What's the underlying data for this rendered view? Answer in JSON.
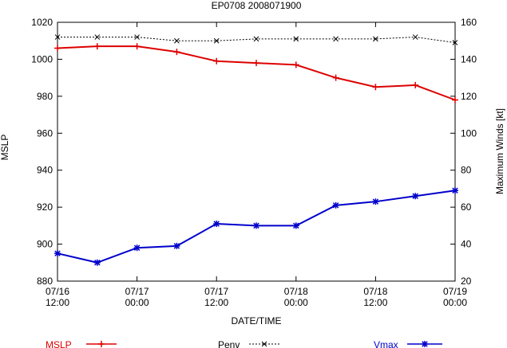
{
  "chart_data": {
    "type": "line",
    "title": "EP0708 2008071900",
    "xlabel": "DATE/TIME",
    "ylabel_left": "MSLP",
    "ylabel_right": "Maximum Winds [kt]",
    "x_ticks": [
      {
        "line1": "07/16",
        "line2": "12:00"
      },
      {
        "line1": "07/17",
        "line2": "00:00"
      },
      {
        "line1": "07/17",
        "line2": "12:00"
      },
      {
        "line1": "07/18",
        "line2": "00:00"
      },
      {
        "line1": "07/18",
        "line2": "12:00"
      },
      {
        "line1": "07/19",
        "line2": "00:00"
      }
    ],
    "x_hours": [
      0,
      6,
      12,
      18,
      24,
      30,
      36,
      42,
      48,
      54,
      60
    ],
    "ylim_left": [
      880,
      1020
    ],
    "yticks_left": [
      880,
      900,
      920,
      940,
      960,
      980,
      1000,
      1020
    ],
    "ylim_right": [
      20,
      160
    ],
    "yticks_right": [
      20,
      40,
      60,
      80,
      100,
      120,
      140,
      160
    ],
    "series": [
      {
        "name": "MSLP",
        "axis": "left",
        "color": "#dd0000",
        "marker": "plus",
        "dashed": false,
        "values": [
          1006,
          1007,
          1007,
          1004,
          999,
          998,
          997,
          990,
          985,
          986,
          978
        ]
      },
      {
        "name": "Penv",
        "axis": "left",
        "color": "#000000",
        "marker": "x",
        "dashed": true,
        "values": [
          1012,
          1012,
          1012,
          1010,
          1010,
          1011,
          1011,
          1011,
          1011,
          1012,
          1009
        ]
      },
      {
        "name": "Vmax",
        "axis": "right",
        "color": "#0000cc",
        "marker": "star",
        "dashed": false,
        "values": [
          35,
          30,
          38,
          39,
          51,
          50,
          50,
          61,
          63,
          66,
          69
        ]
      }
    ],
    "grid": false,
    "legend_placement": "bottom"
  }
}
